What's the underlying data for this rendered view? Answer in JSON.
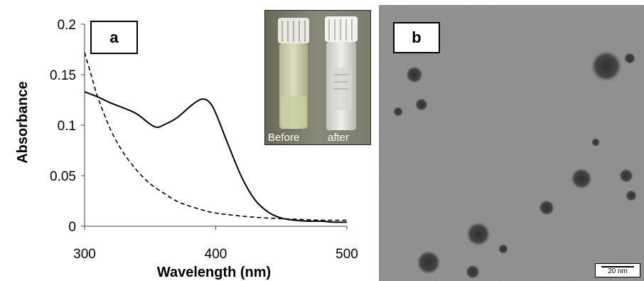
{
  "panel_a": {
    "label": "a",
    "inset": {
      "before_label": "Before",
      "after_label": "after"
    }
  },
  "panel_b": {
    "label": "b",
    "scale_bar": "20 nm"
  },
  "chart_data": {
    "type": "line",
    "title": "",
    "xlabel": "Wavelength (nm)",
    "ylabel": "Absorbance",
    "xlim": [
      300,
      500
    ],
    "ylim": [
      0,
      0.2
    ],
    "xticks": [
      300,
      400,
      500
    ],
    "yticks": [
      0,
      0.05,
      0.1,
      0.15,
      0.2
    ],
    "ytick_labels": [
      "0",
      "0.05",
      "0.1",
      "0.15",
      "0.2"
    ],
    "grid": false,
    "legend": "none",
    "series": [
      {
        "style": "solid",
        "x": [
          300,
          310,
          320,
          330,
          340,
          350,
          355,
          360,
          370,
          380,
          385,
          390,
          395,
          400,
          410,
          420,
          430,
          440,
          450,
          460,
          470,
          480,
          490,
          500
        ],
        "y": [
          0.133,
          0.128,
          0.122,
          0.117,
          0.111,
          0.101,
          0.098,
          0.1,
          0.107,
          0.118,
          0.123,
          0.126,
          0.123,
          0.112,
          0.079,
          0.048,
          0.026,
          0.014,
          0.008,
          0.006,
          0.005,
          0.005,
          0.004,
          0.004
        ]
      },
      {
        "style": "dashed",
        "x": [
          300,
          305,
          310,
          320,
          330,
          340,
          350,
          360,
          370,
          380,
          390,
          400,
          420,
          440,
          460,
          480,
          500
        ],
        "y": [
          0.172,
          0.15,
          0.128,
          0.095,
          0.072,
          0.055,
          0.042,
          0.033,
          0.025,
          0.02,
          0.016,
          0.013,
          0.01,
          0.008,
          0.007,
          0.006,
          0.006
        ]
      }
    ]
  }
}
